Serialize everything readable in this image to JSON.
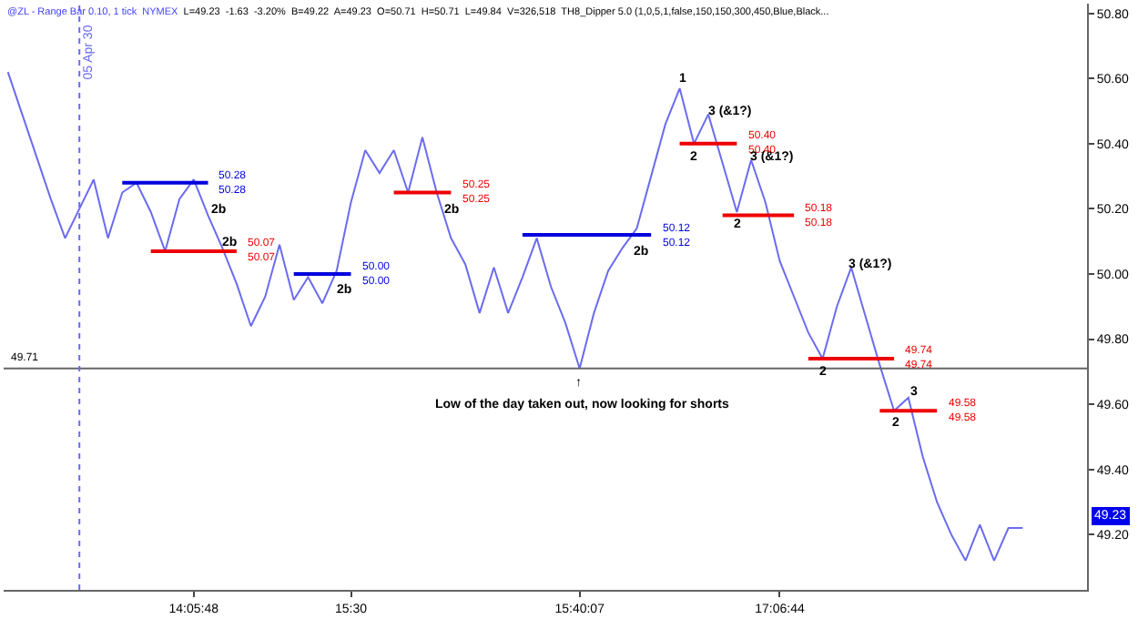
{
  "chart_data": {
    "type": "line",
    "title": "@ZL - Range Bar 0.10, 1 tick  NYMEX",
    "subtitle": "L=49.23  -1.63  -3.20%  B=49.22  A=49.23  O=50.71  H=50.71  L=49.84  V=326,518  TH8_Dipper 5.0 (1,0,5,1,false,150,150,300,450,Blue,Black...",
    "categories": [
      null,
      null,
      null,
      null,
      null,
      null,
      null,
      null,
      null,
      null,
      null,
      null,
      null,
      "14:05:48",
      null,
      null,
      null,
      null,
      null,
      null,
      null,
      null,
      null,
      null,
      "15:30",
      null,
      null,
      null,
      null,
      null,
      null,
      null,
      null,
      null,
      null,
      null,
      null,
      null,
      null,
      null,
      "15:40:07",
      null,
      null,
      null,
      null,
      null,
      null,
      null,
      null,
      null,
      null,
      null,
      null,
      null,
      "17:06:44",
      null,
      null,
      null,
      null,
      null,
      null,
      null,
      null,
      null,
      null,
      null,
      null,
      null,
      null,
      null,
      null,
      null,
      null,
      null,
      null,
      null
    ],
    "ylim": [
      49.03,
      50.83
    ],
    "yticks": [
      {
        "value": 49.2,
        "label": "49.20"
      },
      {
        "value": 49.4,
        "label": "49.40"
      },
      {
        "value": 49.6,
        "label": "49.60"
      },
      {
        "value": 49.8,
        "label": "49.80"
      },
      {
        "value": 50.0,
        "label": "50.00"
      },
      {
        "value": 50.2,
        "label": "50.20"
      },
      {
        "value": 50.4,
        "label": "50.40"
      },
      {
        "value": 50.6,
        "label": "50.60"
      },
      {
        "value": 50.8,
        "label": "50.80"
      }
    ],
    "marker": "none",
    "line_style": "solid",
    "series": [
      {
        "color": "#6b6bf0",
        "values": [
          50.62,
          50.49,
          50.36,
          50.23,
          50.11,
          50.2,
          50.29,
          50.11,
          50.25,
          50.28,
          50.19,
          50.07,
          50.23,
          50.29,
          50.18,
          50.08,
          49.97,
          49.84,
          49.93,
          50.09,
          49.92,
          49.99,
          49.91,
          50.01,
          50.22,
          50.38,
          50.31,
          50.38,
          50.25,
          50.42,
          50.25,
          50.11,
          50.03,
          49.88,
          50.02,
          49.88,
          49.99,
          50.11,
          49.96,
          49.85,
          49.71,
          49.88,
          50.01,
          50.08,
          50.14,
          50.3,
          50.46,
          50.57,
          50.4,
          50.49,
          50.34,
          50.19,
          50.35,
          50.22,
          50.04,
          49.93,
          49.82,
          49.74,
          49.9,
          50.02,
          49.87,
          49.72,
          49.58,
          49.62,
          49.44,
          49.3,
          49.2,
          49.12,
          49.23,
          49.12,
          49.22,
          49.22,
          null,
          null,
          null,
          null
        ]
      },
      {
        "color": "#0000dd",
        "values": [
          null,
          null,
          null,
          null,
          null,
          null,
          null,
          null,
          50.28,
          50.28,
          50.28,
          50.28,
          50.28,
          50.28,
          50.28,
          null,
          null,
          null,
          null,
          null,
          null,
          null,
          null,
          null,
          null,
          null,
          null,
          null,
          null,
          null,
          null,
          null,
          null,
          null,
          null,
          null,
          null,
          null,
          null,
          null,
          null,
          null,
          null,
          null,
          null,
          null,
          null,
          null,
          null,
          null,
          null,
          null,
          null,
          null,
          null,
          null,
          null,
          null,
          null,
          null,
          null,
          null,
          null,
          null,
          null,
          null,
          null,
          null,
          null,
          null,
          null,
          null,
          null,
          null,
          null,
          null
        ],
        "value_labels": [
          null,
          null,
          null,
          null,
          null,
          null,
          null,
          null,
          null,
          null,
          null,
          null,
          null,
          null,
          "50.28\n50.28",
          null,
          null,
          null,
          null,
          null,
          null,
          null,
          null,
          null,
          null,
          null,
          null,
          null,
          null,
          null,
          null,
          null,
          null,
          null,
          null,
          null,
          null,
          null,
          null,
          null,
          null,
          null,
          null,
          null,
          null,
          null,
          null,
          null,
          null,
          null,
          null,
          null,
          null,
          null,
          null,
          null,
          null,
          null,
          null,
          null,
          null,
          null,
          null,
          null,
          null,
          null,
          null,
          null,
          null,
          null,
          null,
          null,
          null,
          null,
          null,
          null
        ]
      },
      {
        "color": "#ee0000",
        "values": [
          null,
          null,
          null,
          null,
          null,
          null,
          null,
          null,
          null,
          null,
          50.07,
          50.07,
          50.07,
          50.07,
          50.07,
          50.07,
          50.07,
          null,
          null,
          null,
          null,
          null,
          null,
          null,
          null,
          null,
          null,
          null,
          null,
          null,
          null,
          null,
          null,
          null,
          null,
          null,
          null,
          null,
          null,
          null,
          null,
          null,
          null,
          null,
          null,
          null,
          null,
          null,
          null,
          null,
          null,
          null,
          null,
          null,
          null,
          null,
          null,
          null,
          null,
          null,
          null,
          null,
          null,
          null,
          null,
          null,
          null,
          null,
          null,
          null,
          null,
          null,
          null,
          null,
          null,
          null
        ],
        "value_labels": [
          null,
          null,
          null,
          null,
          null,
          null,
          null,
          null,
          null,
          null,
          null,
          null,
          null,
          null,
          null,
          null,
          "50.07\n50.07",
          null,
          null,
          null,
          null,
          null,
          null,
          null,
          null,
          null,
          null,
          null,
          null,
          null,
          null,
          null,
          null,
          null,
          null,
          null,
          null,
          null,
          null,
          null,
          null,
          null,
          null,
          null,
          null,
          null,
          null,
          null,
          null,
          null,
          null,
          null,
          null,
          null,
          null,
          null,
          null,
          null,
          null,
          null,
          null,
          null,
          null,
          null,
          null,
          null,
          null,
          null,
          null,
          null,
          null,
          null,
          null,
          null,
          null,
          null
        ]
      },
      {
        "color": "#0000dd",
        "values": [
          null,
          null,
          null,
          null,
          null,
          null,
          null,
          null,
          null,
          null,
          null,
          null,
          null,
          null,
          null,
          null,
          null,
          null,
          null,
          null,
          50.0,
          50.0,
          50.0,
          50.0,
          50.0,
          null,
          null,
          null,
          null,
          null,
          null,
          null,
          null,
          null,
          null,
          null,
          null,
          null,
          null,
          null,
          null,
          null,
          null,
          null,
          null,
          null,
          null,
          null,
          null,
          null,
          null,
          null,
          null,
          null,
          null,
          null,
          null,
          null,
          null,
          null,
          null,
          null,
          null,
          null,
          null,
          null,
          null,
          null,
          null,
          null,
          null,
          null,
          null,
          null,
          null,
          null
        ],
        "value_labels": [
          null,
          null,
          null,
          null,
          null,
          null,
          null,
          null,
          null,
          null,
          null,
          null,
          null,
          null,
          null,
          null,
          null,
          null,
          null,
          null,
          null,
          null,
          null,
          null,
          "50.00\n50.00",
          null,
          null,
          null,
          null,
          null,
          null,
          null,
          null,
          null,
          null,
          null,
          null,
          null,
          null,
          null,
          null,
          null,
          null,
          null,
          null,
          null,
          null,
          null,
          null,
          null,
          null,
          null,
          null,
          null,
          null,
          null,
          null,
          null,
          null,
          null,
          null,
          null,
          null,
          null,
          null,
          null,
          null,
          null,
          null,
          null,
          null,
          null,
          null,
          null,
          null,
          null
        ]
      },
      {
        "color": "#ee0000",
        "values": [
          null,
          null,
          null,
          null,
          null,
          null,
          null,
          null,
          null,
          null,
          null,
          null,
          null,
          null,
          null,
          null,
          null,
          null,
          null,
          null,
          null,
          null,
          null,
          null,
          null,
          null,
          null,
          50.25,
          50.25,
          50.25,
          50.25,
          50.25,
          null,
          null,
          null,
          null,
          null,
          null,
          null,
          null,
          null,
          null,
          null,
          null,
          null,
          null,
          null,
          null,
          null,
          null,
          null,
          null,
          null,
          null,
          null,
          null,
          null,
          null,
          null,
          null,
          null,
          null,
          null,
          null,
          null,
          null,
          null,
          null,
          null,
          null,
          null,
          null,
          null,
          null,
          null,
          null
        ],
        "value_labels": [
          null,
          null,
          null,
          null,
          null,
          null,
          null,
          null,
          null,
          null,
          null,
          null,
          null,
          null,
          null,
          null,
          null,
          null,
          null,
          null,
          null,
          null,
          null,
          null,
          null,
          null,
          null,
          null,
          null,
          null,
          null,
          "50.25\n50.25",
          null,
          null,
          null,
          null,
          null,
          null,
          null,
          null,
          null,
          null,
          null,
          null,
          null,
          null,
          null,
          null,
          null,
          null,
          null,
          null,
          null,
          null,
          null,
          null,
          null,
          null,
          null,
          null,
          null,
          null,
          null,
          null,
          null,
          null,
          null,
          null,
          null,
          null,
          null,
          null,
          null,
          null,
          null,
          null
        ]
      },
      {
        "color": "#0000dd",
        "values": [
          null,
          null,
          null,
          null,
          null,
          null,
          null,
          null,
          null,
          null,
          null,
          null,
          null,
          null,
          null,
          null,
          null,
          null,
          null,
          null,
          null,
          null,
          null,
          null,
          null,
          null,
          null,
          null,
          null,
          null,
          null,
          null,
          null,
          null,
          null,
          null,
          50.12,
          50.12,
          50.12,
          50.12,
          50.12,
          50.12,
          50.12,
          50.12,
          50.12,
          50.12,
          null,
          null,
          null,
          null,
          null,
          null,
          null,
          null,
          null,
          null,
          null,
          null,
          null,
          null,
          null,
          null,
          null,
          null,
          null,
          null,
          null,
          null,
          null,
          null,
          null,
          null,
          null,
          null,
          null,
          null
        ],
        "value_labels": [
          null,
          null,
          null,
          null,
          null,
          null,
          null,
          null,
          null,
          null,
          null,
          null,
          null,
          null,
          null,
          null,
          null,
          null,
          null,
          null,
          null,
          null,
          null,
          null,
          null,
          null,
          null,
          null,
          null,
          null,
          null,
          null,
          null,
          null,
          null,
          null,
          null,
          null,
          null,
          null,
          null,
          null,
          null,
          null,
          null,
          "50.12\n50.12",
          null,
          null,
          null,
          null,
          null,
          null,
          null,
          null,
          null,
          null,
          null,
          null,
          null,
          null,
          null,
          null,
          null,
          null,
          null,
          null,
          null,
          null,
          null,
          null,
          null,
          null,
          null,
          null,
          null,
          null
        ]
      },
      {
        "color": "#ee0000",
        "values": [
          null,
          null,
          null,
          null,
          null,
          null,
          null,
          null,
          null,
          null,
          null,
          null,
          null,
          null,
          null,
          null,
          null,
          null,
          null,
          null,
          null,
          null,
          null,
          null,
          null,
          null,
          null,
          null,
          null,
          null,
          null,
          null,
          null,
          null,
          null,
          null,
          null,
          null,
          null,
          null,
          null,
          null,
          null,
          null,
          null,
          null,
          null,
          50.4,
          50.4,
          50.4,
          50.4,
          50.4,
          null,
          null,
          null,
          null,
          null,
          null,
          null,
          null,
          null,
          null,
          null,
          null,
          null,
          null,
          null,
          null,
          null,
          null,
          null,
          null,
          null,
          null,
          null,
          null
        ],
        "value_labels": [
          null,
          null,
          null,
          null,
          null,
          null,
          null,
          null,
          null,
          null,
          null,
          null,
          null,
          null,
          null,
          null,
          null,
          null,
          null,
          null,
          null,
          null,
          null,
          null,
          null,
          null,
          null,
          null,
          null,
          null,
          null,
          null,
          null,
          null,
          null,
          null,
          null,
          null,
          null,
          null,
          null,
          null,
          null,
          null,
          null,
          null,
          null,
          null,
          null,
          null,
          null,
          "50.40\n50.40",
          null,
          null,
          null,
          null,
          null,
          null,
          null,
          null,
          null,
          null,
          null,
          null,
          null,
          null,
          null,
          null,
          null,
          null,
          null,
          null,
          null,
          null,
          null,
          null
        ]
      },
      {
        "color": "#ee0000",
        "values": [
          null,
          null,
          null,
          null,
          null,
          null,
          null,
          null,
          null,
          null,
          null,
          null,
          null,
          null,
          null,
          null,
          null,
          null,
          null,
          null,
          null,
          null,
          null,
          null,
          null,
          null,
          null,
          null,
          null,
          null,
          null,
          null,
          null,
          null,
          null,
          null,
          null,
          null,
          null,
          null,
          null,
          null,
          null,
          null,
          null,
          null,
          null,
          null,
          null,
          null,
          50.18,
          50.18,
          50.18,
          50.18,
          50.18,
          50.18,
          null,
          null,
          null,
          null,
          null,
          null,
          null,
          null,
          null,
          null,
          null,
          null,
          null,
          null,
          null,
          null,
          null,
          null,
          null,
          null
        ],
        "value_labels": [
          null,
          null,
          null,
          null,
          null,
          null,
          null,
          null,
          null,
          null,
          null,
          null,
          null,
          null,
          null,
          null,
          null,
          null,
          null,
          null,
          null,
          null,
          null,
          null,
          null,
          null,
          null,
          null,
          null,
          null,
          null,
          null,
          null,
          null,
          null,
          null,
          null,
          null,
          null,
          null,
          null,
          null,
          null,
          null,
          null,
          null,
          null,
          null,
          null,
          null,
          null,
          null,
          null,
          null,
          null,
          "50.18\n50.18",
          null,
          null,
          null,
          null,
          null,
          null,
          null,
          null,
          null,
          null,
          null,
          null,
          null,
          null,
          null,
          null,
          null,
          null,
          null,
          null
        ]
      },
      {
        "color": "#ee0000",
        "values": [
          null,
          null,
          null,
          null,
          null,
          null,
          null,
          null,
          null,
          null,
          null,
          null,
          null,
          null,
          null,
          null,
          null,
          null,
          null,
          null,
          null,
          null,
          null,
          null,
          null,
          null,
          null,
          null,
          null,
          null,
          null,
          null,
          null,
          null,
          null,
          null,
          null,
          null,
          null,
          null,
          null,
          null,
          null,
          null,
          null,
          null,
          null,
          null,
          null,
          null,
          null,
          null,
          null,
          null,
          null,
          null,
          49.74,
          49.74,
          49.74,
          49.74,
          49.74,
          49.74,
          49.74,
          null,
          null,
          null,
          null,
          null,
          null,
          null,
          null,
          null,
          null,
          null,
          null,
          null
        ],
        "value_labels": [
          null,
          null,
          null,
          null,
          null,
          null,
          null,
          null,
          null,
          null,
          null,
          null,
          null,
          null,
          null,
          null,
          null,
          null,
          null,
          null,
          null,
          null,
          null,
          null,
          null,
          null,
          null,
          null,
          null,
          null,
          null,
          null,
          null,
          null,
          null,
          null,
          null,
          null,
          null,
          null,
          null,
          null,
          null,
          null,
          null,
          null,
          null,
          null,
          null,
          null,
          null,
          null,
          null,
          null,
          null,
          null,
          null,
          null,
          null,
          null,
          null,
          null,
          "49.74\n49.74",
          null,
          null,
          null,
          null,
          null,
          null,
          null,
          null,
          null,
          null,
          null,
          null,
          null
        ]
      },
      {
        "color": "#ee0000",
        "values": [
          null,
          null,
          null,
          null,
          null,
          null,
          null,
          null,
          null,
          null,
          null,
          null,
          null,
          null,
          null,
          null,
          null,
          null,
          null,
          null,
          null,
          null,
          null,
          null,
          null,
          null,
          null,
          null,
          null,
          null,
          null,
          null,
          null,
          null,
          null,
          null,
          null,
          null,
          null,
          null,
          null,
          null,
          null,
          null,
          null,
          null,
          null,
          null,
          null,
          null,
          null,
          null,
          null,
          null,
          null,
          null,
          null,
          null,
          null,
          null,
          null,
          49.58,
          49.58,
          49.58,
          49.58,
          49.58,
          null,
          null,
          null,
          null,
          null,
          null,
          null,
          null,
          null,
          null
        ],
        "value_labels": [
          null,
          null,
          null,
          null,
          null,
          null,
          null,
          null,
          null,
          null,
          null,
          null,
          null,
          null,
          null,
          null,
          null,
          null,
          null,
          null,
          null,
          null,
          null,
          null,
          null,
          null,
          null,
          null,
          null,
          null,
          null,
          null,
          null,
          null,
          null,
          null,
          null,
          null,
          null,
          null,
          null,
          null,
          null,
          null,
          null,
          null,
          null,
          null,
          null,
          null,
          null,
          null,
          null,
          null,
          null,
          null,
          null,
          null,
          null,
          null,
          null,
          null,
          null,
          null,
          null,
          "49.58\n49.58",
          null,
          null,
          null,
          null,
          null,
          null,
          null,
          null,
          null,
          null
        ]
      }
    ],
    "ref_lines": [
      {
        "axis": "y",
        "value": 49.71,
        "label": "49.71",
        "color": "#666666",
        "line_style": "solid"
      }
    ],
    "annotations": [
      "2b",
      "2b",
      "2b",
      "2b",
      "2b",
      "1",
      "2",
      "3 (&1?)",
      "2",
      "3 (&1?)",
      "2",
      "3 (&1?)",
      "2",
      "3",
      "↑",
      "Low of the day taken out, now looking for shorts",
      "05 Apr 30",
      "49.23"
    ]
  }
}
